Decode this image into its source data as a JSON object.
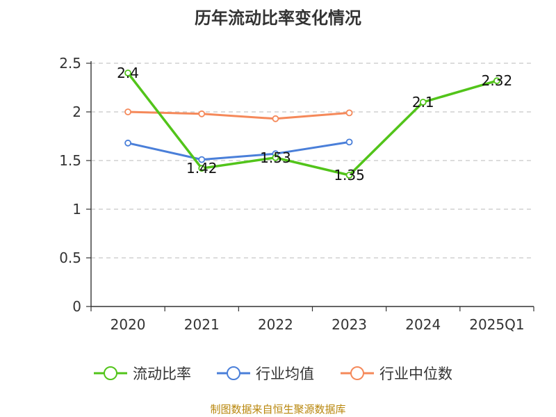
{
  "title": "历年流动比率变化情况",
  "source": "制图数据来自恒生聚源数据库",
  "chart_data": {
    "type": "line",
    "title": "历年流动比率变化情况",
    "categories": [
      "2020",
      "2021",
      "2022",
      "2023",
      "2024",
      "2025Q1"
    ],
    "ylim": [
      0,
      2.5
    ],
    "yticks": [
      "0",
      "0.5",
      "1",
      "1.5",
      "2",
      "2.5"
    ],
    "grid": true,
    "legend_position": "bottom",
    "series": [
      {
        "name": "流动比率",
        "color": "#52c41a",
        "values": [
          2.4,
          1.42,
          1.53,
          1.35,
          2.1,
          2.32
        ],
        "labels": [
          "2.4",
          "1.42",
          "1.53",
          "1.35",
          "2.1",
          "2.32"
        ]
      },
      {
        "name": "行业均值",
        "color": "#4a7fd9",
        "values": [
          1.68,
          1.51,
          1.57,
          1.69,
          null,
          null
        ]
      },
      {
        "name": "行业中位数",
        "color": "#f5895a",
        "values": [
          2.0,
          1.98,
          1.93,
          1.99,
          null,
          null
        ]
      }
    ]
  }
}
